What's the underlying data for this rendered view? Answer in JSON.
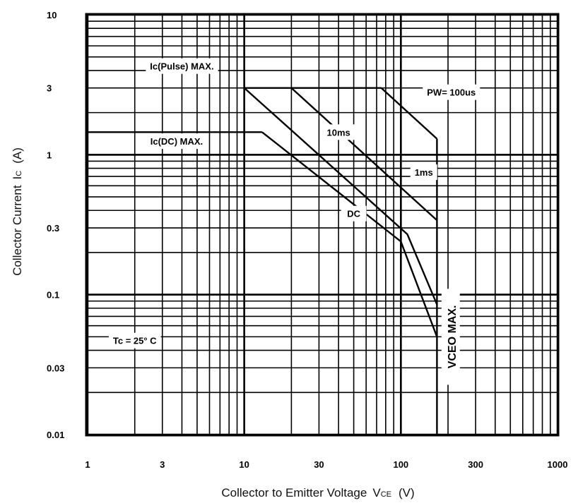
{
  "chart_data": {
    "type": "line",
    "title": "",
    "xlabel": "Collector to Emitter Voltage",
    "xlabel_symbol": "V",
    "xlabel_subscript": "CE",
    "xlabel_unit": "(V)",
    "ylabel": "Collector Current",
    "ylabel_symbol": "I",
    "ylabel_subscript": "C",
    "ylabel_unit": "(A)",
    "x_scale": "log",
    "y_scale": "log",
    "xlim": [
      1,
      1000
    ],
    "ylim": [
      0.01,
      10
    ],
    "grid": true,
    "xticks": [
      {
        "value": 1,
        "label": "1"
      },
      {
        "value": 3,
        "label": "3"
      },
      {
        "value": 10,
        "label": "10"
      },
      {
        "value": 30,
        "label": "30"
      },
      {
        "value": 100,
        "label": "100"
      },
      {
        "value": 300,
        "label": "300"
      },
      {
        "value": 1000,
        "label": "1000"
      }
    ],
    "yticks": [
      {
        "value": 10,
        "label": "10"
      },
      {
        "value": 3,
        "label": "3"
      },
      {
        "value": 1,
        "label": "1"
      },
      {
        "value": 0.3,
        "label": "0.3"
      },
      {
        "value": 0.1,
        "label": "0.1"
      },
      {
        "value": 0.03,
        "label": "0.03"
      },
      {
        "value": 0.01,
        "label": "0.01"
      }
    ],
    "series": [
      {
        "name": "Ic(Pulse) MAX.",
        "points": [
          [
            10,
            3
          ],
          [
            75,
            3
          ]
        ]
      },
      {
        "name": "PW= 100us",
        "points": [
          [
            75,
            3
          ],
          [
            170,
            1.3
          ]
        ]
      },
      {
        "name": "1ms",
        "points": [
          [
            20,
            3
          ],
          [
            170,
            0.34
          ]
        ]
      },
      {
        "name": "10ms",
        "points": [
          [
            10,
            3
          ],
          [
            110,
            0.27
          ],
          [
            170,
            0.085
          ]
        ]
      },
      {
        "name": "Ic(DC) MAX.",
        "points": [
          [
            1,
            1.45
          ],
          [
            13,
            1.45
          ]
        ]
      },
      {
        "name": "DC",
        "points": [
          [
            13,
            1.45
          ],
          [
            100,
            0.24
          ],
          [
            170,
            0.05
          ]
        ]
      },
      {
        "name": "VCEO MAX.",
        "points": [
          [
            170,
            1.3
          ],
          [
            170,
            0.01
          ]
        ]
      }
    ],
    "annotations": [
      {
        "text": "Ic(Pulse)  MAX.",
        "x": 4,
        "y": 4.3
      },
      {
        "text": "Ic(DC)    MAX.",
        "x": 3.7,
        "y": 1.25
      },
      {
        "text": "PW= 100us",
        "x": 210,
        "y": 2.8
      },
      {
        "text": "10ms",
        "x": 40,
        "y": 1.45
      },
      {
        "text": "1ms",
        "x": 140,
        "y": 0.75
      },
      {
        "text": "DC",
        "x": 50,
        "y": 0.38
      },
      {
        "text": "Tc  = 25° C",
        "x": 2,
        "y": 0.047
      },
      {
        "text": "VCEO  MAX.",
        "x": 210,
        "y": 0.05
      }
    ]
  }
}
